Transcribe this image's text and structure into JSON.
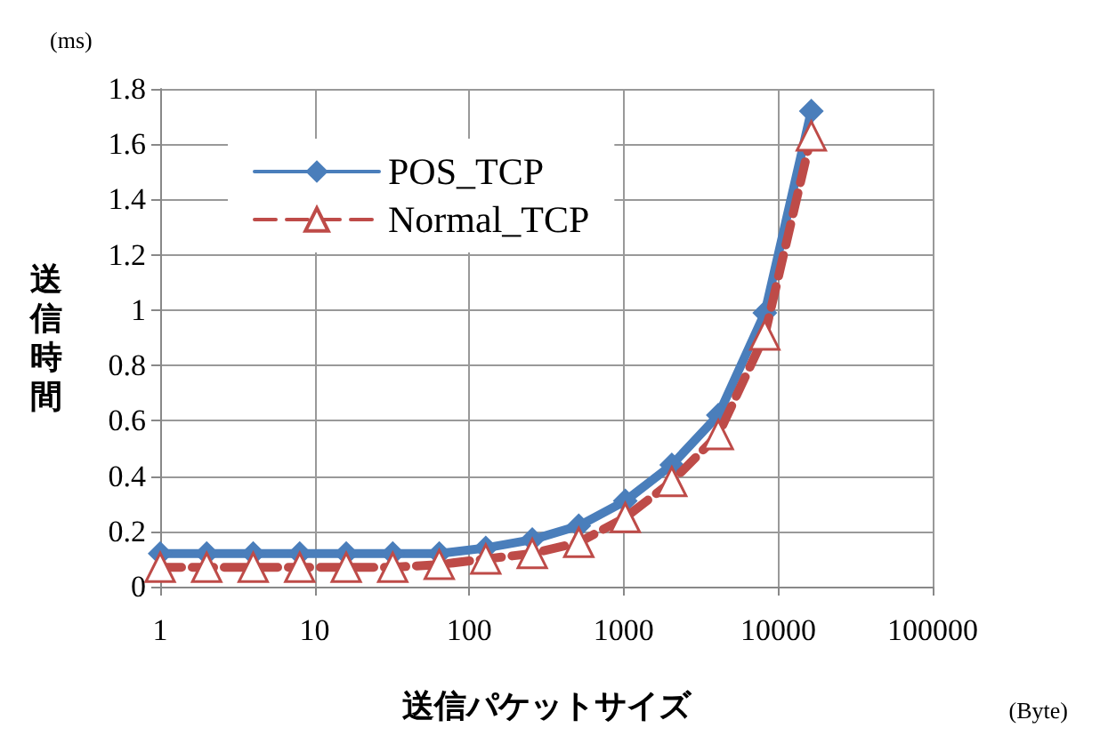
{
  "chart_data": {
    "type": "line",
    "xlabel": "送信パケットサイズ",
    "ylabel": "送信時間",
    "annotations": [
      "(ms)",
      "(Byte)"
    ],
    "x": [
      1,
      2,
      4,
      8,
      16,
      32,
      64,
      128,
      256,
      512,
      1024,
      2048,
      4096,
      8192,
      16384
    ],
    "series": [
      {
        "name": "POS_TCP",
        "color": "#4a7ebb",
        "marker": "diamond",
        "line_style": "solid",
        "values": [
          0.12,
          0.12,
          0.12,
          0.12,
          0.12,
          0.12,
          0.12,
          0.14,
          0.17,
          0.22,
          0.31,
          0.44,
          0.62,
          0.99,
          1.72
        ]
      },
      {
        "name": "Normal_TCP",
        "color": "#be4b48",
        "marker": "triangle",
        "line_style": "dashed",
        "values": [
          0.07,
          0.07,
          0.07,
          0.07,
          0.07,
          0.07,
          0.08,
          0.1,
          0.12,
          0.16,
          0.25,
          0.38,
          0.55,
          0.91,
          1.63
        ]
      }
    ],
    "log": "x",
    "xlim": [
      1,
      100000
    ],
    "xticks": [
      1,
      10,
      100,
      1000,
      10000,
      100000
    ],
    "ylim": [
      0,
      1.8
    ],
    "yticks": [
      0,
      0.2,
      0.4,
      0.6,
      0.8,
      1,
      1.2,
      1.4,
      1.6,
      1.8
    ],
    "grid": true,
    "legend": "top left"
  }
}
